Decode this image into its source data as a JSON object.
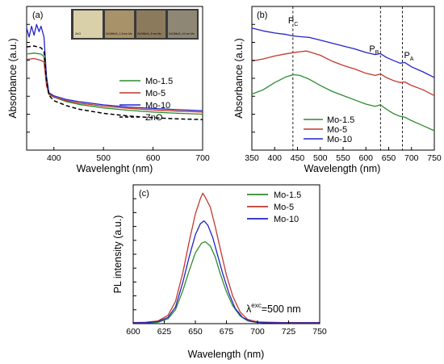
{
  "colors": {
    "Mo-1.5": "#2e8b2e",
    "Mo-5": "#c0392b",
    "Mo-10": "#2323c8",
    "ZnO": "#000000"
  },
  "chart_data": [
    {
      "panel": "(a)",
      "type": "line",
      "xlabel": "Wavelenght  (nm)",
      "ylabel": "Absorbance  (a.u.)",
      "xlim": [
        345,
        700
      ],
      "xticks": [
        400,
        500,
        600,
        700
      ],
      "legend_position": "center-right",
      "inset_labels": [
        "ZnO",
        "ZnO/MoS₂ 1.5 nm Mo",
        "ZnO/MoS₂ 5 nm Mo",
        "ZnO/MoS₂ 10 nm Mo"
      ],
      "inset_colors": [
        "#d9cfa9",
        "#a8926a",
        "#8c7a5c",
        "#8f8775"
      ],
      "series": [
        {
          "name": "Mo-1.5",
          "style": "solid",
          "x": [
            345,
            360,
            374,
            380,
            385,
            390,
            400,
            425,
            450,
            500,
            550,
            600,
            650,
            700
          ],
          "y": [
            5.35,
            5.4,
            5.35,
            5.2,
            3.8,
            3.15,
            2.95,
            2.7,
            2.55,
            2.35,
            2.22,
            2.12,
            2.05,
            2.0
          ]
        },
        {
          "name": "Mo-5",
          "style": "solid",
          "x": [
            345,
            360,
            374,
            380,
            385,
            390,
            400,
            425,
            450,
            500,
            550,
            600,
            650,
            700
          ],
          "y": [
            5.05,
            5.1,
            5.0,
            4.9,
            3.6,
            3.1,
            2.95,
            2.75,
            2.62,
            2.45,
            2.33,
            2.24,
            2.17,
            2.12
          ]
        },
        {
          "name": "Mo-10",
          "style": "solid",
          "x": [
            345,
            350,
            355,
            360,
            365,
            370,
            374,
            380,
            385,
            390,
            400,
            425,
            450,
            500,
            550,
            600,
            650,
            700
          ],
          "y": [
            6.8,
            6.3,
            6.9,
            6.4,
            7.0,
            6.6,
            6.9,
            6.3,
            4.1,
            3.2,
            3.02,
            2.82,
            2.7,
            2.52,
            2.4,
            2.32,
            2.25,
            2.2
          ]
        },
        {
          "name": "ZnO",
          "style": "dashed",
          "x": [
            345,
            360,
            374,
            380,
            385,
            390,
            400,
            425,
            450,
            500,
            550,
            600,
            650,
            700
          ],
          "y": [
            5.75,
            5.8,
            5.7,
            5.5,
            3.9,
            3.05,
            2.75,
            2.48,
            2.28,
            2.05,
            1.9,
            1.8,
            1.74,
            1.7
          ]
        }
      ],
      "ylim": [
        0,
        8
      ]
    },
    {
      "panel": "(b)",
      "type": "line",
      "xlabel": "Wavelength  (nm)",
      "ylabel": "Absorbance  (a.u.)",
      "xlim": [
        350,
        750
      ],
      "xticks": [
        350,
        400,
        450,
        500,
        550,
        600,
        650,
        700,
        750
      ],
      "ylim": [
        0,
        10
      ],
      "legend_position": "lower-left",
      "peak_lines": [
        {
          "label": "P",
          "sub": "C",
          "x": 440
        },
        {
          "label": "P",
          "sub": "B",
          "x": 632
        },
        {
          "label": "P",
          "sub": "A",
          "x": 680
        }
      ],
      "series": [
        {
          "name": "Mo-1.5",
          "style": "solid",
          "x": [
            350,
            375,
            400,
            425,
            440,
            455,
            475,
            500,
            525,
            550,
            575,
            600,
            620,
            632,
            645,
            660,
            675,
            685,
            700,
            725,
            750
          ],
          "y": [
            3.9,
            4.2,
            4.7,
            5.1,
            5.25,
            5.2,
            4.95,
            4.5,
            4.1,
            3.8,
            3.5,
            3.2,
            3.05,
            3.15,
            2.85,
            2.55,
            2.35,
            2.3,
            2.05,
            1.7,
            1.35
          ]
        },
        {
          "name": "Mo-5",
          "style": "solid",
          "x": [
            350,
            375,
            400,
            425,
            440,
            455,
            470,
            500,
            525,
            550,
            575,
            600,
            620,
            632,
            645,
            660,
            675,
            685,
            700,
            725,
            750
          ],
          "y": [
            6.2,
            6.35,
            6.55,
            6.7,
            6.78,
            6.85,
            6.9,
            6.6,
            6.2,
            5.9,
            5.65,
            5.35,
            5.2,
            5.3,
            5.05,
            4.85,
            4.7,
            4.75,
            4.5,
            4.2,
            3.8
          ]
        },
        {
          "name": "Mo-10",
          "style": "solid",
          "x": [
            350,
            375,
            400,
            425,
            440,
            455,
            475,
            500,
            525,
            550,
            575,
            600,
            620,
            632,
            645,
            660,
            675,
            685,
            700,
            725,
            750
          ],
          "y": [
            8.5,
            8.3,
            8.15,
            8.05,
            7.95,
            7.9,
            7.85,
            7.65,
            7.45,
            7.25,
            7.05,
            6.8,
            6.65,
            6.72,
            6.45,
            6.25,
            6.05,
            6.1,
            5.8,
            5.45,
            5.05
          ]
        }
      ]
    },
    {
      "panel": "(c)",
      "type": "line",
      "xlabel": "Wavelength  (nm)",
      "ylabel": "PL intensity  (a.u.)",
      "xlim": [
        600,
        750
      ],
      "xticks": [
        600,
        625,
        650,
        675,
        700,
        725,
        750
      ],
      "ylim": [
        0,
        10
      ],
      "legend_position": "top-right",
      "annotation": {
        "text": "λ",
        "sup": "exc",
        "rest": "=500 nm"
      },
      "series": [
        {
          "name": "Mo-1.5",
          "style": "solid",
          "x": [
            600,
            610,
            620,
            628,
            634,
            640,
            645,
            650,
            655,
            658,
            662,
            666,
            670,
            675,
            680,
            686,
            692,
            700,
            720,
            750
          ],
          "y": [
            0.05,
            0.05,
            0.1,
            0.35,
            1.0,
            2.4,
            3.8,
            5.1,
            5.8,
            5.9,
            5.6,
            4.8,
            3.6,
            2.3,
            1.3,
            0.55,
            0.2,
            0.08,
            0.05,
            0.05
          ]
        },
        {
          "name": "Mo-5",
          "style": "solid",
          "x": [
            600,
            610,
            620,
            628,
            634,
            640,
            645,
            650,
            654,
            656,
            658,
            662,
            666,
            670,
            675,
            680,
            686,
            692,
            700,
            720,
            750
          ],
          "y": [
            0.08,
            0.1,
            0.2,
            0.6,
            1.6,
            3.7,
            5.9,
            7.9,
            9.0,
            9.4,
            9.1,
            8.4,
            7.0,
            5.4,
            3.5,
            2.0,
            0.85,
            0.3,
            0.12,
            0.08,
            0.08
          ]
        },
        {
          "name": "Mo-10",
          "style": "solid",
          "x": [
            600,
            610,
            620,
            628,
            634,
            640,
            645,
            650,
            654,
            657,
            660,
            664,
            668,
            672,
            677,
            682,
            688,
            695,
            705,
            720,
            750
          ],
          "y": [
            0.06,
            0.07,
            0.15,
            0.45,
            1.2,
            3.0,
            4.8,
            6.4,
            7.2,
            7.4,
            7.1,
            6.2,
            4.9,
            3.6,
            2.2,
            1.1,
            0.45,
            0.15,
            0.07,
            0.06,
            0.06
          ]
        }
      ]
    }
  ]
}
